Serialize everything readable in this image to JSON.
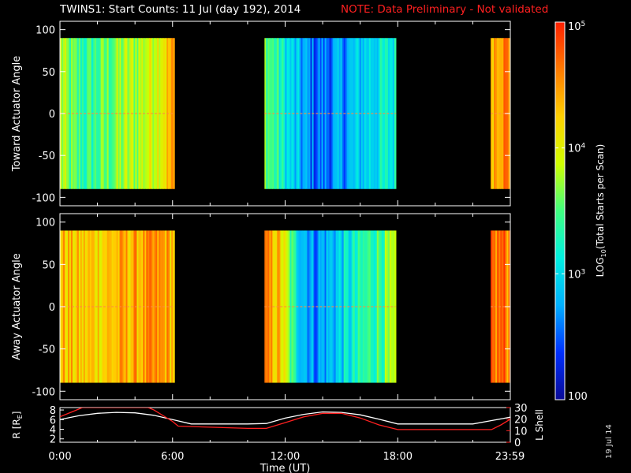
{
  "header": {
    "title": "TWINS1: Start Counts: 11 Jul (day 192), 2014",
    "note": "NOTE: Data Preliminary - Not validated",
    "note_color": "#ff2020"
  },
  "stamp": "19 Jul 14",
  "chart_data": [
    {
      "type": "heatmap",
      "panel": "top",
      "ylabel": "Toward Actuator Angle",
      "yticks": [
        100,
        50,
        0,
        -50,
        -100
      ],
      "ylim": [
        -110,
        110
      ],
      "data_extent_y": [
        -90,
        90
      ],
      "xlim_hours": [
        0,
        24
      ],
      "coverage_hours": [
        [
          0.0,
          6.1
        ],
        [
          10.9,
          17.9
        ],
        [
          22.95,
          23.98
        ]
      ],
      "intensity_profile": [
        {
          "t": 0.0,
          "v": 0.62
        },
        {
          "t": 0.5,
          "v": 0.5
        },
        {
          "t": 1.5,
          "v": 0.45
        },
        {
          "t": 3.0,
          "v": 0.55
        },
        {
          "t": 4.5,
          "v": 0.62
        },
        {
          "t": 5.5,
          "v": 0.72
        },
        {
          "t": 6.1,
          "v": 0.8
        },
        {
          "t": 10.9,
          "v": 0.55
        },
        {
          "t": 11.7,
          "v": 0.42
        },
        {
          "t": 12.5,
          "v": 0.28
        },
        {
          "t": 13.5,
          "v": 0.18
        },
        {
          "t": 14.5,
          "v": 0.2
        },
        {
          "t": 15.5,
          "v": 0.26
        },
        {
          "t": 16.5,
          "v": 0.34
        },
        {
          "t": 17.9,
          "v": 0.38
        },
        {
          "t": 22.95,
          "v": 0.82
        },
        {
          "t": 23.5,
          "v": 0.88
        },
        {
          "t": 23.98,
          "v": 0.85
        }
      ]
    },
    {
      "type": "heatmap",
      "panel": "middle",
      "ylabel": "Away Actuator Angle",
      "yticks": [
        100,
        50,
        0,
        -50,
        -100
      ],
      "ylim": [
        -110,
        110
      ],
      "data_extent_y": [
        -90,
        90
      ],
      "xlim_hours": [
        0,
        24
      ],
      "coverage_hours": [
        [
          0.0,
          6.1
        ],
        [
          10.9,
          17.9
        ],
        [
          22.95,
          23.98
        ]
      ],
      "intensity_profile": [
        {
          "t": 0.0,
          "v": 0.78
        },
        {
          "t": 1.0,
          "v": 0.74
        },
        {
          "t": 2.5,
          "v": 0.76
        },
        {
          "t": 4.0,
          "v": 0.8
        },
        {
          "t": 5.5,
          "v": 0.82
        },
        {
          "t": 6.1,
          "v": 0.78
        },
        {
          "t": 10.9,
          "v": 0.82
        },
        {
          "t": 11.7,
          "v": 0.76
        },
        {
          "t": 12.5,
          "v": 0.4
        },
        {
          "t": 13.5,
          "v": 0.22
        },
        {
          "t": 14.5,
          "v": 0.28
        },
        {
          "t": 15.5,
          "v": 0.36
        },
        {
          "t": 16.5,
          "v": 0.46
        },
        {
          "t": 17.9,
          "v": 0.55
        },
        {
          "t": 22.95,
          "v": 0.85
        },
        {
          "t": 23.5,
          "v": 0.9
        },
        {
          "t": 23.98,
          "v": 0.86
        }
      ]
    },
    {
      "type": "line",
      "panel": "bottom",
      "ylabel": "R [R",
      "ylabel_sub": "E",
      "ylabel_right": "L Shell",
      "yticks_left": [
        8,
        6,
        4,
        2
      ],
      "ylim_left": [
        1.3,
        8.5
      ],
      "yticks_right": [
        30,
        20,
        10,
        0
      ],
      "ylim_right": [
        0,
        30
      ],
      "xlim_hours": [
        0,
        24
      ],
      "xticks": [
        {
          "t": 0,
          "label": "0:00"
        },
        {
          "t": 6,
          "label": "6:00"
        },
        {
          "t": 12,
          "label": "12:00"
        },
        {
          "t": 18,
          "label": "18:00"
        },
        {
          "t": 23.98,
          "label": "23:59"
        }
      ],
      "xlabel": "Time (UT)",
      "series": [
        {
          "color": "#ffffff",
          "axis": "left",
          "x": [
            0,
            0.5,
            1,
            2,
            3,
            4,
            5,
            6,
            7,
            8,
            9,
            10,
            11,
            12,
            13,
            14,
            15,
            16,
            17,
            18,
            19,
            20,
            21,
            22,
            23,
            24
          ],
          "y": [
            6.0,
            6.4,
            6.8,
            7.3,
            7.5,
            7.4,
            6.9,
            6.0,
            5.1,
            5.1,
            5.1,
            5.1,
            5.2,
            6.3,
            7.1,
            7.6,
            7.5,
            7.0,
            6.1,
            5.1,
            5.1,
            5.1,
            5.1,
            5.1,
            5.8,
            6.5
          ]
        },
        {
          "color": "#ff2020",
          "axis": "right",
          "x": [
            0,
            0.6,
            1.2,
            2,
            3,
            4,
            4.7,
            5,
            6,
            6.3,
            8,
            10,
            11,
            12,
            13,
            14,
            15,
            16,
            17,
            18,
            18.5,
            20,
            22,
            23,
            23.5,
            24
          ],
          "y": [
            22,
            26,
            30,
            30,
            30,
            30,
            30,
            28,
            18,
            14,
            13,
            12,
            12,
            17,
            22,
            25,
            25,
            21,
            15,
            11,
            11,
            11,
            11,
            11,
            15,
            20
          ]
        }
      ]
    },
    {
      "type": "colorbar",
      "title": "LOG",
      "title_sub": "10",
      "title_rest": "(Total Starts per Scan)",
      "ticks": [
        {
          "value": 100,
          "label": "100"
        },
        {
          "value": 1000,
          "label_base": "10",
          "label_exp": "3"
        },
        {
          "value": 10000,
          "label_base": "10",
          "label_exp": "4"
        },
        {
          "value": 100000,
          "label_base": "10",
          "label_exp": "5"
        }
      ],
      "range": [
        100,
        100000
      ],
      "colors": [
        "#0a0a96",
        "#0030ff",
        "#00b0ff",
        "#00f0e0",
        "#40ff80",
        "#d0ff00",
        "#ffd000",
        "#ff7a00",
        "#ff2000"
      ]
    }
  ]
}
